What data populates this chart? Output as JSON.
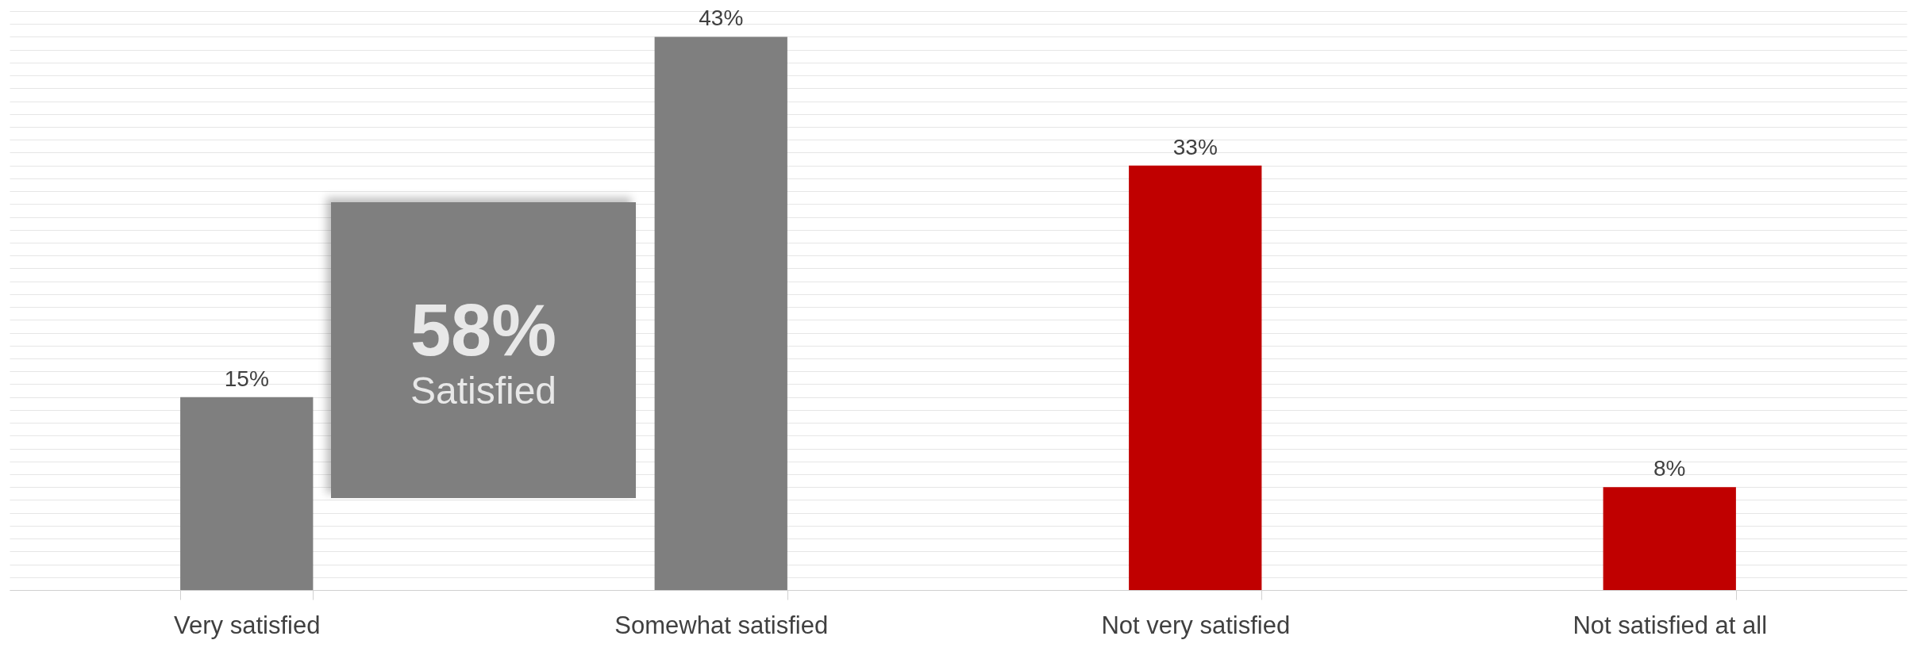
{
  "chart_data": {
    "type": "bar",
    "categories": [
      "Very satisfied",
      "Somewhat satisfied",
      "Not very satisfied",
      "Not satisfied at all"
    ],
    "values": [
      15,
      43,
      33,
      8
    ],
    "colors": [
      "#7f7f7f",
      "#7f7f7f",
      "#c00000",
      "#c00000"
    ],
    "value_labels": [
      "15%",
      "43%",
      "33%",
      "8%"
    ],
    "annotations": [
      "58%",
      "Satisfied"
    ],
    "grid": "y",
    "tick_labels": "x"
  }
}
